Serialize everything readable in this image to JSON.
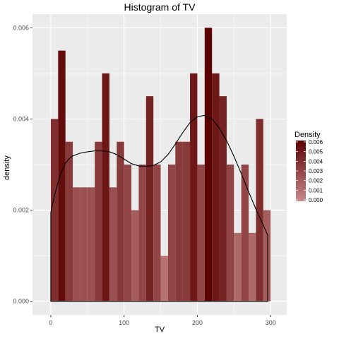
{
  "chart_data": {
    "type": "bar",
    "title": "Histogram of TV",
    "xlabel": "TV",
    "ylabel": "density",
    "x_ticks": [
      "0",
      "100",
      "200",
      "300"
    ],
    "y_ticks": [
      "0.000",
      "0.002",
      "0.004",
      "0.006"
    ],
    "xlim": [
      -25,
      322
    ],
    "ylim": [
      -0.0003,
      0.0063
    ],
    "grid": true,
    "bin_width": 10,
    "bins": [
      {
        "x": 0,
        "density": 0.004
      },
      {
        "x": 10,
        "density": 0.0055
      },
      {
        "x": 20,
        "density": 0.0035
      },
      {
        "x": 30,
        "density": 0.0025
      },
      {
        "x": 40,
        "density": 0.0025
      },
      {
        "x": 50,
        "density": 0.0025
      },
      {
        "x": 60,
        "density": 0.0035
      },
      {
        "x": 70,
        "density": 0.005
      },
      {
        "x": 80,
        "density": 0.0025
      },
      {
        "x": 90,
        "density": 0.0035
      },
      {
        "x": 100,
        "density": 0.003
      },
      {
        "x": 110,
        "density": 0.002
      },
      {
        "x": 120,
        "density": 0.003
      },
      {
        "x": 130,
        "density": 0.0045
      },
      {
        "x": 140,
        "density": 0.003
      },
      {
        "x": 150,
        "density": 0.001
      },
      {
        "x": 160,
        "density": 0.003
      },
      {
        "x": 170,
        "density": 0.0035
      },
      {
        "x": 180,
        "density": 0.0035
      },
      {
        "x": 190,
        "density": 0.005
      },
      {
        "x": 200,
        "density": 0.003
      },
      {
        "x": 210,
        "density": 0.006
      },
      {
        "x": 220,
        "density": 0.005
      },
      {
        "x": 230,
        "density": 0.0045
      },
      {
        "x": 240,
        "density": 0.003
      },
      {
        "x": 250,
        "density": 0.0015
      },
      {
        "x": 260,
        "density": 0.003
      },
      {
        "x": 270,
        "density": 0.0015
      },
      {
        "x": 280,
        "density": 0.004
      },
      {
        "x": 290,
        "density": 0.002
      }
    ],
    "density_curve": {
      "x": [
        0,
        5,
        10,
        15,
        20,
        25,
        30,
        40,
        50,
        60,
        70,
        80,
        90,
        100,
        110,
        120,
        130,
        140,
        150,
        160,
        170,
        180,
        190,
        200,
        210,
        220,
        230,
        240,
        250,
        260,
        270,
        280,
        290,
        296
      ],
      "y": [
        0.00195,
        0.00232,
        0.00262,
        0.00286,
        0.00303,
        0.00313,
        0.00319,
        0.00325,
        0.00328,
        0.0033,
        0.0033,
        0.00328,
        0.00322,
        0.00312,
        0.00302,
        0.00297,
        0.00296,
        0.00298,
        0.00306,
        0.00322,
        0.00345,
        0.0037,
        0.00392,
        0.00405,
        0.00408,
        0.004,
        0.0038,
        0.00352,
        0.00318,
        0.0028,
        0.0024,
        0.00202,
        0.00167,
        0.00145
      ]
    },
    "colors": {
      "panel_bg": "#ebebeb",
      "grid": "#ffffff",
      "low": "#c98a8a",
      "high": "#5a0000",
      "curve": "#000000"
    },
    "legend": {
      "title": "Density",
      "position": "right",
      "labels": [
        "0.006",
        "0.005",
        "0.004",
        "0.003",
        "0.002",
        "0.001",
        "0.000"
      ]
    }
  }
}
